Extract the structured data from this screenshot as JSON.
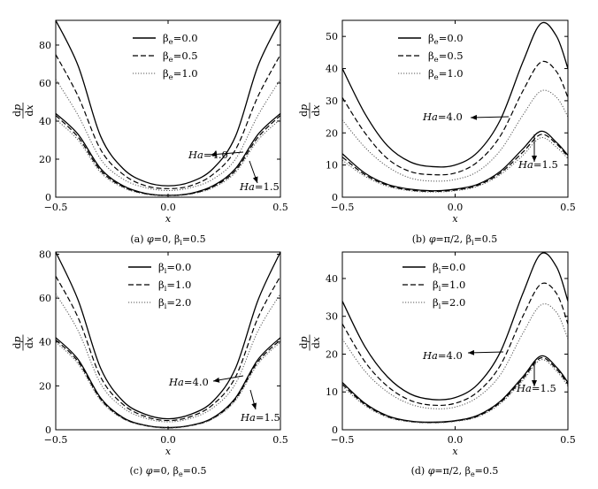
{
  "chart_data": [
    {
      "type": "line",
      "caption": "(a) φ=0, β",
      "caption_sub": "i",
      "caption_tail": "=0.5",
      "caption_parts": {
        "phi": "φ",
        "eq_phi": "=0, ",
        "beta": "β",
        "sub": "i",
        "tail": "=0.5"
      },
      "xlabel": "x",
      "ylabel": {
        "num": "dp",
        "den": "dx"
      },
      "xlim": [
        -0.5,
        0.5
      ],
      "ylim": [
        0,
        93
      ],
      "xticks": [
        "-0.5",
        "0.0",
        "0.5"
      ],
      "yticks": [
        "0",
        "20",
        "40",
        "60",
        "80"
      ],
      "legend_position": "top-center",
      "legend": [
        {
          "beta": "β",
          "sub": "e",
          "value": "=0.0",
          "style": "solid"
        },
        {
          "beta": "β",
          "sub": "e",
          "value": "=0.5",
          "style": "dashed"
        },
        {
          "beta": "β",
          "sub": "e",
          "value": "=1.0",
          "style": "dotted"
        }
      ],
      "annotations": [
        {
          "name": "Ha",
          "value": "=4.0"
        },
        {
          "name": "Ha",
          "value": "=1.5"
        }
      ],
      "series": [
        {
          "group": "Ha=4.0",
          "style": "solid",
          "x": [
            -0.5,
            -0.4,
            -0.3,
            -0.2,
            -0.1,
            0,
            0.1,
            0.2,
            0.3,
            0.4,
            0.5
          ],
          "y": [
            93,
            69,
            32,
            15,
            8,
            6,
            8,
            15,
            32,
            69,
            93
          ]
        },
        {
          "group": "Ha=4.0",
          "style": "dashed",
          "x": [
            -0.5,
            -0.4,
            -0.3,
            -0.2,
            -0.1,
            0,
            0.1,
            0.2,
            0.3,
            0.4,
            0.5
          ],
          "y": [
            75,
            53,
            25,
            12,
            6,
            4.5,
            6,
            12,
            25,
            53,
            75
          ]
        },
        {
          "group": "Ha=4.0",
          "style": "dotted",
          "x": [
            -0.5,
            -0.4,
            -0.3,
            -0.2,
            -0.1,
            0,
            0.1,
            0.2,
            0.3,
            0.4,
            0.5
          ],
          "y": [
            62,
            43,
            20,
            9.5,
            5,
            3.5,
            5,
            9.5,
            20,
            43,
            62
          ]
        },
        {
          "group": "Ha=1.5",
          "style": "solid",
          "x": [
            -0.5,
            -0.4,
            -0.3,
            -0.2,
            -0.1,
            0,
            0.1,
            0.2,
            0.3,
            0.4,
            0.5
          ],
          "y": [
            44,
            33,
            15,
            6,
            2,
            1,
            2,
            6,
            15,
            33,
            44
          ]
        },
        {
          "group": "Ha=1.5",
          "style": "dashed",
          "x": [
            -0.5,
            -0.4,
            -0.3,
            -0.2,
            -0.1,
            0,
            0.1,
            0.2,
            0.3,
            0.4,
            0.5
          ],
          "y": [
            43,
            31.5,
            14,
            5.5,
            1.8,
            0.9,
            1.8,
            5.5,
            14,
            31.5,
            43
          ]
        },
        {
          "group": "Ha=1.5",
          "style": "dotted",
          "x": [
            -0.5,
            -0.4,
            -0.3,
            -0.2,
            -0.1,
            0,
            0.1,
            0.2,
            0.3,
            0.4,
            0.5
          ],
          "y": [
            41,
            30,
            13,
            5,
            1.6,
            0.8,
            1.6,
            5,
            13,
            30,
            41
          ]
        }
      ]
    },
    {
      "type": "line",
      "caption_parts": {
        "phi": "φ",
        "eq_phi": "=π/2, ",
        "beta": "β",
        "sub": "i",
        "tail": "=0.5",
        "label": "(b) "
      },
      "xlabel": "x",
      "ylabel": {
        "num": "dp",
        "den": "dx"
      },
      "xlim": [
        -0.5,
        0.5
      ],
      "ylim": [
        0,
        55
      ],
      "xticks": [
        "-0.5",
        "0.0",
        "0.5"
      ],
      "yticks": [
        "0",
        "10",
        "20",
        "30",
        "40",
        "50"
      ],
      "legend_position": "top-center",
      "legend": [
        {
          "beta": "β",
          "sub": "e",
          "value": "=0.0",
          "style": "solid"
        },
        {
          "beta": "β",
          "sub": "e",
          "value": "=0.5",
          "style": "dashed"
        },
        {
          "beta": "β",
          "sub": "e",
          "value": "=1.0",
          "style": "dotted"
        }
      ],
      "annotations": [
        {
          "name": "Ha",
          "value": "=4.0"
        },
        {
          "name": "Ha",
          "value": "=1.5"
        }
      ],
      "series": [
        {
          "group": "Ha=4.0",
          "style": "solid",
          "x": [
            -0.5,
            -0.4,
            -0.3,
            -0.2,
            -0.1,
            0,
            0.1,
            0.2,
            0.3,
            0.38,
            0.45,
            0.5
          ],
          "y": [
            40,
            26,
            16,
            11,
            9.5,
            10,
            14,
            24,
            42,
            54,
            50,
            40
          ]
        },
        {
          "group": "Ha=4.0",
          "style": "dashed",
          "x": [
            -0.5,
            -0.4,
            -0.3,
            -0.2,
            -0.1,
            0,
            0.1,
            0.2,
            0.3,
            0.38,
            0.45,
            0.5
          ],
          "y": [
            31,
            20,
            12,
            8,
            7,
            7.5,
            11,
            19,
            33,
            42,
            39,
            31
          ]
        },
        {
          "group": "Ha=4.0",
          "style": "dotted",
          "x": [
            -0.5,
            -0.4,
            -0.3,
            -0.2,
            -0.1,
            0,
            0.1,
            0.2,
            0.3,
            0.38,
            0.45,
            0.5
          ],
          "y": [
            24,
            15.5,
            9.5,
            6,
            5,
            5.5,
            8,
            14.5,
            25.5,
            33,
            31,
            25
          ]
        },
        {
          "group": "Ha=1.5",
          "style": "solid",
          "x": [
            -0.5,
            -0.4,
            -0.3,
            -0.2,
            -0.1,
            0,
            0.1,
            0.2,
            0.3,
            0.38,
            0.45,
            0.5
          ],
          "y": [
            13.5,
            7.5,
            4,
            2.5,
            2,
            2.5,
            4,
            8,
            15,
            20.5,
            17,
            13
          ]
        },
        {
          "group": "Ha=1.5",
          "style": "dashed",
          "x": [
            -0.5,
            -0.4,
            -0.3,
            -0.2,
            -0.1,
            0,
            0.1,
            0.2,
            0.3,
            0.38,
            0.45,
            0.5
          ],
          "y": [
            12.5,
            7,
            3.7,
            2.2,
            1.8,
            2.2,
            3.7,
            7.5,
            14,
            19.5,
            16.5,
            12.5
          ]
        },
        {
          "group": "Ha=1.5",
          "style": "dotted",
          "x": [
            -0.5,
            -0.4,
            -0.3,
            -0.2,
            -0.1,
            0,
            0.1,
            0.2,
            0.3,
            0.38,
            0.45,
            0.5
          ],
          "y": [
            11.5,
            6.5,
            3.4,
            2,
            1.6,
            2,
            3.4,
            7,
            13,
            18.5,
            15.5,
            12
          ]
        }
      ]
    },
    {
      "type": "line",
      "caption_parts": {
        "phi": "φ",
        "eq_phi": "=0, ",
        "beta": "β",
        "sub": "e",
        "tail": "=0.5",
        "label": "(c) "
      },
      "xlabel": "x",
      "ylabel": {
        "num": "dp",
        "den": "dx"
      },
      "xlim": [
        -0.5,
        0.5
      ],
      "ylim": [
        0,
        81
      ],
      "xticks": [
        "-0.5",
        "0.0",
        "0.5"
      ],
      "yticks": [
        "0",
        "20",
        "40",
        "60",
        "80"
      ],
      "legend_position": "top-center",
      "legend": [
        {
          "beta": "β",
          "sub": "i",
          "value": "=0.0",
          "style": "solid"
        },
        {
          "beta": "β",
          "sub": "i",
          "value": "=1.0",
          "style": "dashed"
        },
        {
          "beta": "β",
          "sub": "i",
          "value": "=2.0",
          "style": "dotted"
        }
      ],
      "annotations": [
        {
          "name": "Ha",
          "value": "=4.0"
        },
        {
          "name": "Ha",
          "value": "=1.5"
        }
      ],
      "series": [
        {
          "group": "Ha=4.0",
          "style": "solid",
          "x": [
            -0.5,
            -0.4,
            -0.3,
            -0.2,
            -0.1,
            0,
            0.1,
            0.2,
            0.3,
            0.4,
            0.5
          ],
          "y": [
            81,
            59,
            28,
            13,
            7,
            5,
            7,
            13,
            28,
            59,
            81
          ]
        },
        {
          "group": "Ha=4.0",
          "style": "dashed",
          "x": [
            -0.5,
            -0.4,
            -0.3,
            -0.2,
            -0.1,
            0,
            0.1,
            0.2,
            0.3,
            0.4,
            0.5
          ],
          "y": [
            70,
            51,
            24,
            11.5,
            6,
            4.2,
            6,
            11.5,
            24,
            51,
            70
          ]
        },
        {
          "group": "Ha=4.0",
          "style": "dotted",
          "x": [
            -0.5,
            -0.4,
            -0.3,
            -0.2,
            -0.1,
            0,
            0.1,
            0.2,
            0.3,
            0.4,
            0.5
          ],
          "y": [
            62,
            45,
            21,
            10,
            5.2,
            3.6,
            5.2,
            10,
            21,
            45,
            62
          ]
        },
        {
          "group": "Ha=1.5",
          "style": "solid",
          "x": [
            -0.5,
            -0.4,
            -0.3,
            -0.2,
            -0.1,
            0,
            0.1,
            0.2,
            0.3,
            0.4,
            0.5
          ],
          "y": [
            42,
            32,
            14.5,
            5.5,
            2,
            1,
            2,
            5.5,
            14.5,
            32,
            42
          ]
        },
        {
          "group": "Ha=1.5",
          "style": "dashed",
          "x": [
            -0.5,
            -0.4,
            -0.3,
            -0.2,
            -0.1,
            0,
            0.1,
            0.2,
            0.3,
            0.4,
            0.5
          ],
          "y": [
            41,
            31,
            14,
            5.2,
            1.9,
            0.9,
            1.9,
            5.2,
            14,
            31,
            41
          ]
        },
        {
          "group": "Ha=1.5",
          "style": "dotted",
          "x": [
            -0.5,
            -0.4,
            -0.3,
            -0.2,
            -0.1,
            0,
            0.1,
            0.2,
            0.3,
            0.4,
            0.5
          ],
          "y": [
            40,
            30,
            13.3,
            5,
            1.8,
            0.8,
            1.8,
            5,
            13.3,
            30,
            40
          ]
        }
      ]
    },
    {
      "type": "line",
      "caption_parts": {
        "phi": "φ",
        "eq_phi": "=π/2, ",
        "beta": "β",
        "sub": "e",
        "tail": "=0.5",
        "label": "(d) "
      },
      "xlabel": "x",
      "ylabel": {
        "num": "dp",
        "den": "dx"
      },
      "xlim": [
        -0.5,
        0.5
      ],
      "ylim": [
        0,
        47
      ],
      "xticks": [
        "-0.5",
        "0.0",
        "0.5"
      ],
      "yticks": [
        "0",
        "10",
        "20",
        "30",
        "40"
      ],
      "legend_position": "top-center",
      "legend": [
        {
          "beta": "β",
          "sub": "i",
          "value": "=0.0",
          "style": "solid"
        },
        {
          "beta": "β",
          "sub": "i",
          "value": "=1.0",
          "style": "dashed"
        },
        {
          "beta": "β",
          "sub": "i",
          "value": "=2.0",
          "style": "dotted"
        }
      ],
      "annotations": [
        {
          "name": "Ha",
          "value": "=4.0"
        },
        {
          "name": "Ha",
          "value": "=1.5"
        }
      ],
      "series": [
        {
          "group": "Ha=4.0",
          "style": "solid",
          "x": [
            -0.5,
            -0.4,
            -0.3,
            -0.2,
            -0.1,
            0,
            0.1,
            0.2,
            0.3,
            0.38,
            0.45,
            0.5
          ],
          "y": [
            34,
            22,
            14,
            9.5,
            8,
            8.5,
            12,
            20.5,
            36,
            46.5,
            43,
            34
          ]
        },
        {
          "group": "Ha=4.0",
          "style": "dashed",
          "x": [
            -0.5,
            -0.4,
            -0.3,
            -0.2,
            -0.1,
            0,
            0.1,
            0.2,
            0.3,
            0.38,
            0.45,
            0.5
          ],
          "y": [
            28,
            18,
            11.5,
            7.8,
            6.5,
            7,
            10,
            17,
            30,
            38.5,
            36,
            28
          ]
        },
        {
          "group": "Ha=4.0",
          "style": "dotted",
          "x": [
            -0.5,
            -0.4,
            -0.3,
            -0.2,
            -0.1,
            0,
            0.1,
            0.2,
            0.3,
            0.38,
            0.45,
            0.5
          ],
          "y": [
            24,
            15.5,
            10,
            6.8,
            5.6,
            6,
            8.6,
            14.5,
            25.5,
            33,
            31,
            24
          ]
        },
        {
          "group": "Ha=1.5",
          "style": "solid",
          "x": [
            -0.5,
            -0.4,
            -0.3,
            -0.2,
            -0.1,
            0,
            0.1,
            0.2,
            0.3,
            0.38,
            0.45,
            0.5
          ],
          "y": [
            12.5,
            7,
            3.7,
            2.3,
            2,
            2.4,
            3.8,
            7.5,
            14,
            19.5,
            16.5,
            12.5
          ]
        },
        {
          "group": "Ha=1.5",
          "style": "dashed",
          "x": [
            -0.5,
            -0.4,
            -0.3,
            -0.2,
            -0.1,
            0,
            0.1,
            0.2,
            0.3,
            0.38,
            0.45,
            0.5
          ],
          "y": [
            12,
            6.7,
            3.5,
            2.2,
            1.9,
            2.3,
            3.6,
            7.2,
            13.5,
            19,
            16,
            12
          ]
        },
        {
          "group": "Ha=1.5",
          "style": "dotted",
          "x": [
            -0.5,
            -0.4,
            -0.3,
            -0.2,
            -0.1,
            0,
            0.1,
            0.2,
            0.3,
            0.38,
            0.45,
            0.5
          ],
          "y": [
            11.5,
            6.4,
            3.3,
            2.1,
            1.8,
            2.2,
            3.4,
            6.9,
            13,
            18.5,
            15.5,
            11.5
          ]
        }
      ]
    }
  ],
  "captions": [
    {
      "label": "(a) ",
      "phi": "φ",
      "eq": "=0, ",
      "beta": "β",
      "sub": "i",
      "tail": "=0.5"
    },
    {
      "label": "(b) ",
      "phi": "φ",
      "eq": "=π/2, ",
      "beta": "β",
      "sub": "i",
      "tail": "=0.5"
    },
    {
      "label": "(c) ",
      "phi": "φ",
      "eq": "=0, ",
      "beta": "β",
      "sub": "e",
      "tail": "=0.5"
    },
    {
      "label": "(d) ",
      "phi": "φ",
      "eq": "=π/2, ",
      "beta": "β",
      "sub": "e",
      "tail": "=0.5"
    }
  ]
}
